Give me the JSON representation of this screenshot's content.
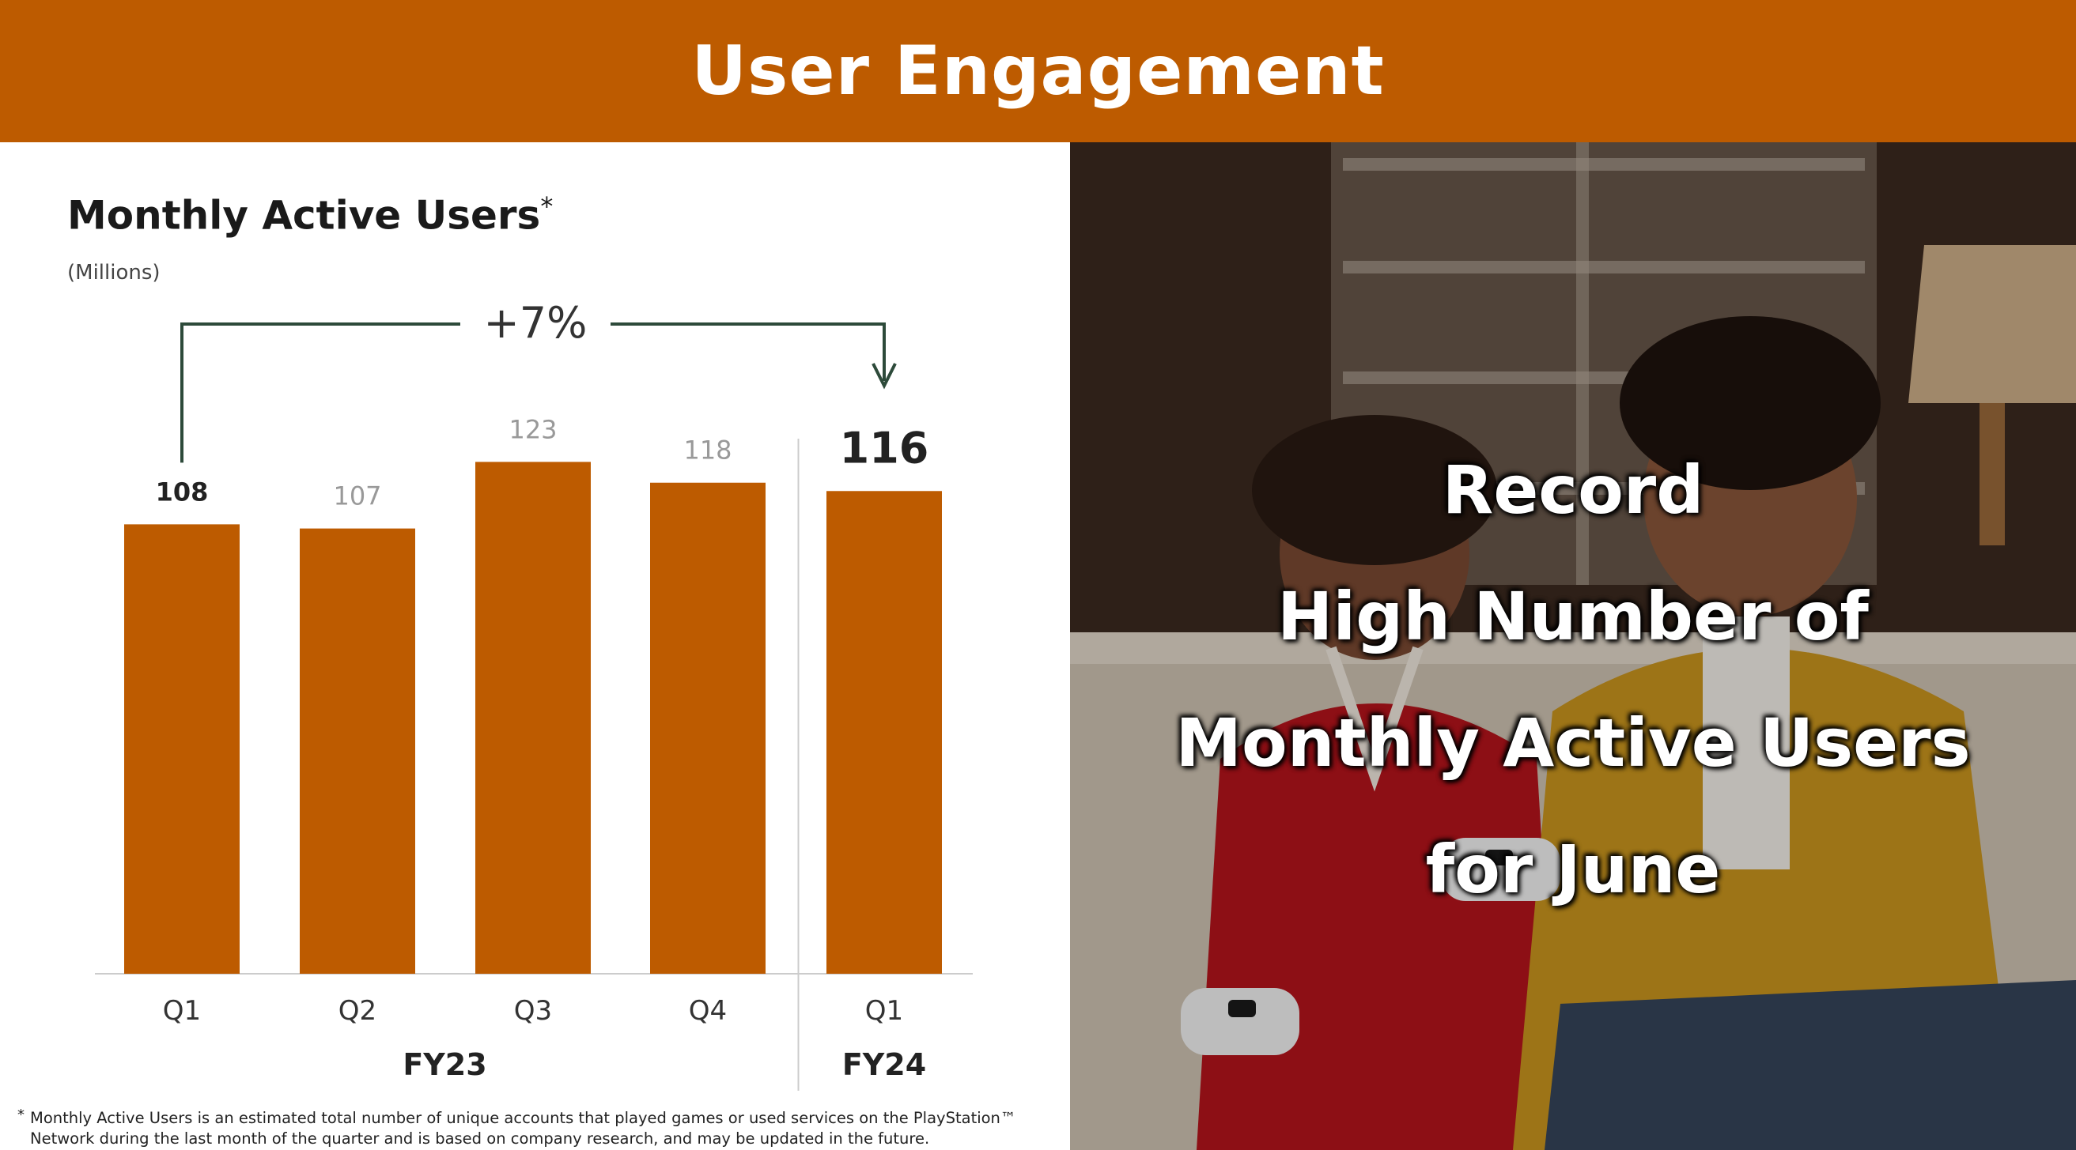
{
  "header": {
    "title": "User Engagement"
  },
  "chart_data": {
    "type": "bar",
    "title": "Monthly Active Users",
    "title_mark": "*",
    "unit": "(Millions)",
    "categories": [
      "Q1",
      "Q2",
      "Q3",
      "Q4",
      "Q1"
    ],
    "values": [
      108,
      107,
      123,
      118,
      116
    ],
    "period_groups": [
      {
        "label": "FY23",
        "categories": 4
      },
      {
        "label": "FY24",
        "categories": 1
      }
    ],
    "annotation": "+7%",
    "bar_color": "#bd5b00",
    "highlight_label_color": "#222222",
    "muted_label_color": "#999999"
  },
  "footnote": {
    "mark": "*",
    "text": "Monthly Active Users is an estimated total number of unique accounts that played games or used services on the PlayStation™ Network during the last month of the quarter and is based on company research, and may be updated in the future."
  },
  "photo": {
    "headline_lines": [
      "Record",
      "High Number of",
      "Monthly Active Users",
      "for June"
    ]
  }
}
